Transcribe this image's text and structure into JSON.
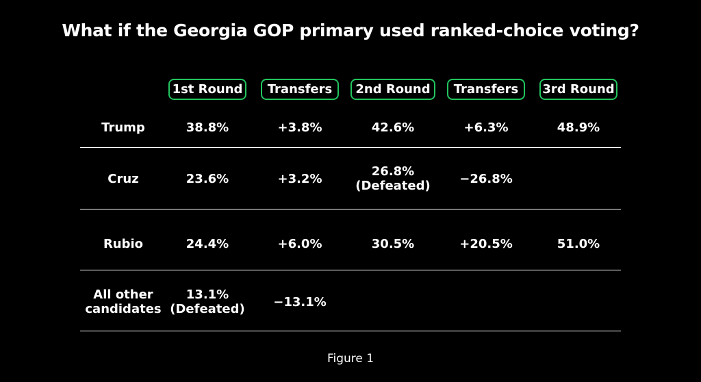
{
  "title": "What if the Georgia GOP primary used ranked-choice voting?",
  "caption": "Figure 1",
  "colors": {
    "background": "#000000",
    "text": "#ffffff",
    "accent": "#22c55e"
  },
  "chart_data": {
    "type": "table",
    "columns": [
      "1st Round",
      "Transfers",
      "2nd Round",
      "Transfers",
      "3rd Round"
    ],
    "rows": [
      {
        "label": "Trump",
        "cells": [
          "38.8%",
          "+3.8%",
          "42.6%",
          "+6.3%",
          "48.9%"
        ]
      },
      {
        "label": "Cruz",
        "cells": [
          "23.6%",
          "+3.2%",
          "26.8%\n(Defeated)",
          "−26.8%",
          ""
        ]
      },
      {
        "label": "Rubio",
        "cells": [
          "24.4%",
          "+6.0%",
          "30.5%",
          "+20.5%",
          "51.0%"
        ]
      },
      {
        "label": "All other\ncandidates",
        "cells": [
          "13.1%\n(Defeated)",
          "−13.1%",
          "",
          "",
          ""
        ]
      }
    ]
  }
}
